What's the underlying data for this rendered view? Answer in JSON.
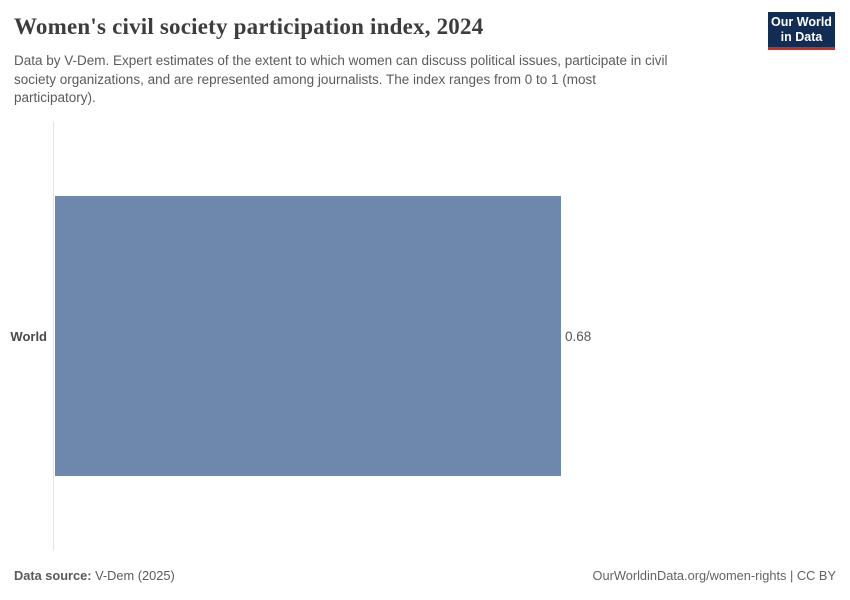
{
  "header": {
    "title": "Women's civil society participation index, 2024",
    "subtitle": "Data by V-Dem. Expert estimates of the extent to which women can discuss political issues, participate in civil society organizations, and are represented among journalists. The index ranges from 0 to 1 (most participatory).",
    "subtitle_lines": [
      "Data by V-Dem. Expert estimates of the extent to which women can discuss political issues, participate in civil",
      "society organizations, and are represented among journalists. The index ranges from 0 to 1 (most",
      "participatory)."
    ],
    "logo": {
      "line1": "Our World",
      "line2": "in Data"
    }
  },
  "chart_data": {
    "type": "bar",
    "orientation": "horizontal",
    "title": "Women's civil society participation index, 2024",
    "categories": [
      "World"
    ],
    "values": [
      0.68
    ],
    "xlim": [
      0,
      1
    ],
    "grid": false,
    "legend": false,
    "bar_color": "#6d87ad",
    "axis_line_color": "#e3e3e3"
  },
  "footer": {
    "source_label": "Data source:",
    "source_value": "V-Dem (2025)",
    "attribution": "OurWorldinData.org/women-rights | CC BY"
  },
  "colors": {
    "title": "#3d3d3d",
    "subtitle": "#5b5b5b",
    "bar": "#6d87ad",
    "axis_line": "#e3e3e3",
    "logo_bg": "#112d54",
    "logo_stripe": "#d5281e"
  }
}
